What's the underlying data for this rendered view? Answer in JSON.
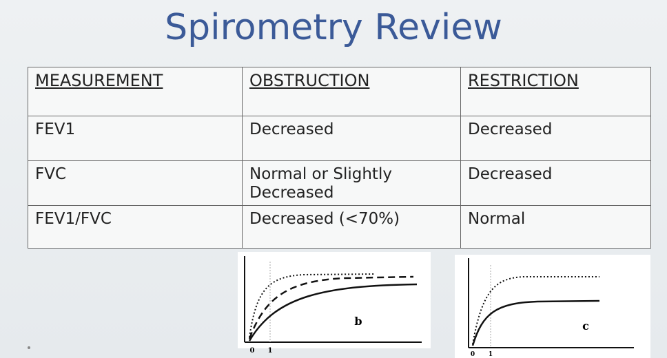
{
  "title": "Spirometry Review",
  "table": {
    "header": [
      "MEASUREMENT",
      "OBSTRUCTION",
      "RESTRICTION"
    ],
    "rows": [
      [
        "FEV1",
        "Decreased",
        "Decreased"
      ],
      [
        "FVC",
        "Normal or Slightly Decreased",
        "Decreased"
      ],
      [
        "FEV1/FVC",
        "Decreased (<70%)",
        "Normal"
      ]
    ]
  },
  "figures": [
    {
      "label": "b",
      "ticks": [
        "0",
        "1"
      ]
    },
    {
      "label": "c",
      "ticks": [
        "0",
        "1"
      ]
    }
  ]
}
